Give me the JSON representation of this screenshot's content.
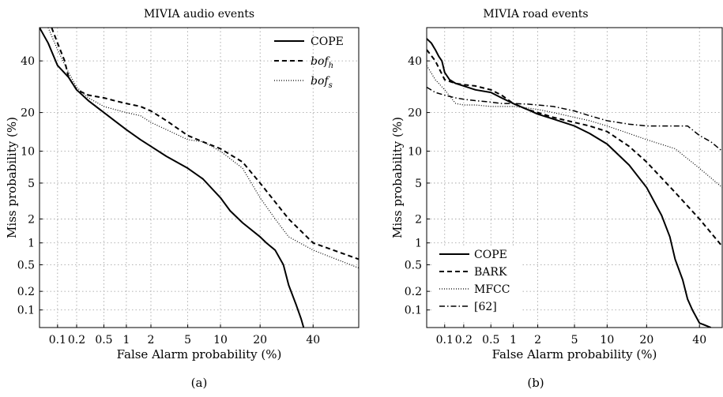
{
  "chart_data": [
    {
      "type": "line",
      "title": "MIVIA audio events",
      "xlabel": "False Alarm probability (%)",
      "ylabel": "Miss probability (%)",
      "xscale": "normal-deviate",
      "yscale": "normal-deviate",
      "xlim": [
        0.05,
        60
      ],
      "ylim": [
        0.05,
        55
      ],
      "xticks": [
        0.1,
        0.2,
        0.5,
        1,
        2,
        5,
        10,
        20,
        40
      ],
      "xtick_labels": [
        "0.1",
        "0.2",
        "0.5",
        "1",
        "2",
        "5",
        "10",
        "20",
        "40"
      ],
      "yticks": [
        0.1,
        0.2,
        0.5,
        1,
        2,
        5,
        10,
        20,
        40
      ],
      "ytick_labels": [
        "0.1",
        "0.2",
        "0.5",
        "1",
        "2",
        "5",
        "10",
        "20",
        "40"
      ],
      "grid": true,
      "legend_position": "top-right",
      "caption": "(a)",
      "series": [
        {
          "name": "COPE",
          "style": "solid",
          "width": 2,
          "x": [
            0.05,
            0.07,
            0.1,
            0.15,
            0.2,
            0.3,
            0.5,
            0.7,
            1,
            1.5,
            2,
            3,
            5,
            7,
            10,
            12,
            15,
            20,
            22,
            25,
            28,
            30,
            33,
            35,
            36
          ],
          "y": [
            55,
            48,
            38,
            33,
            28,
            24,
            20,
            17.5,
            15,
            12.5,
            11,
            9,
            7,
            5.5,
            3.5,
            2.5,
            1.8,
            1.2,
            1,
            0.8,
            0.5,
            0.25,
            0.12,
            0.07,
            0.05
          ]
        },
        {
          "name": "bof_h",
          "label_base": "bof",
          "label_sub": "h",
          "style": "dashed",
          "width": 2,
          "x": [
            0.08,
            0.1,
            0.13,
            0.15,
            0.2,
            0.3,
            0.5,
            0.7,
            1,
            1.5,
            2,
            3,
            5,
            7,
            10,
            15,
            20,
            30,
            40,
            60
          ],
          "y": [
            55,
            48,
            40,
            33,
            28,
            26,
            25,
            24,
            23,
            22,
            20.5,
            17.5,
            13.5,
            12,
            10.5,
            8,
            5,
            2,
            1,
            0.6
          ]
        },
        {
          "name": "bof_s",
          "label_base": "bof",
          "label_sub": "s",
          "style": "dotted",
          "width": 1.2,
          "x": [
            0.07,
            0.1,
            0.15,
            0.2,
            0.3,
            0.5,
            0.7,
            1,
            1.5,
            2,
            3,
            5,
            7,
            10,
            15,
            20,
            25,
            30,
            40,
            60
          ],
          "y": [
            55,
            45,
            35,
            29,
            25,
            22,
            21,
            20,
            19,
            17,
            15,
            12.5,
            12,
            10,
            7,
            3.5,
            2,
            1.2,
            0.8,
            0.45
          ]
        }
      ]
    },
    {
      "type": "line",
      "title": "MIVIA road events",
      "xlabel": "False Alarm probability (%)",
      "ylabel": "Miss probability (%)",
      "xscale": "normal-deviate",
      "yscale": "normal-deviate",
      "xlim": [
        0.05,
        50
      ],
      "ylim": [
        0.05,
        55
      ],
      "xticks": [
        0.1,
        0.2,
        0.5,
        1,
        2,
        5,
        10,
        20,
        40
      ],
      "xtick_labels": [
        "0.1",
        "0.2",
        "0.5",
        "1",
        "2",
        "5",
        "10",
        "20",
        "40"
      ],
      "yticks": [
        0.1,
        0.2,
        0.5,
        1,
        2,
        5,
        10,
        20,
        40
      ],
      "ytick_labels": [
        "0.1",
        "0.2",
        "0.5",
        "1",
        "2",
        "5",
        "10",
        "20",
        "40"
      ],
      "grid": true,
      "legend_position": "bottom-left",
      "caption": "(b)",
      "series": [
        {
          "name": "COPE",
          "style": "solid",
          "width": 2,
          "x": [
            0.05,
            0.06,
            0.07,
            0.08,
            0.09,
            0.1,
            0.12,
            0.15,
            0.2,
            0.3,
            0.5,
            0.7,
            1,
            1.5,
            2,
            3,
            5,
            7,
            10,
            15,
            20,
            25,
            28,
            30,
            33,
            35,
            37,
            40,
            45
          ],
          "y": [
            50,
            48,
            45,
            42,
            40,
            35,
            32,
            30.5,
            29.5,
            28,
            27,
            25,
            23,
            21,
            19.5,
            18,
            16,
            14,
            11.5,
            7.5,
            4.5,
            2.2,
            1.2,
            0.6,
            0.3,
            0.15,
            0.1,
            0.06,
            0.05
          ]
        },
        {
          "name": "BARK",
          "style": "dashed",
          "width": 2,
          "x": [
            0.05,
            0.07,
            0.1,
            0.15,
            0.2,
            0.3,
            0.5,
            0.7,
            1,
            1.5,
            2,
            3,
            5,
            7,
            10,
            15,
            20,
            30,
            40,
            50
          ],
          "y": [
            45,
            40,
            32,
            30.5,
            30,
            29.5,
            28,
            26,
            23,
            21,
            20,
            18.5,
            17,
            16,
            14.5,
            11,
            8,
            4,
            2,
            0.9
          ]
        },
        {
          "name": "MFCC",
          "style": "dotted",
          "width": 1.2,
          "x": [
            0.05,
            0.07,
            0.1,
            0.15,
            0.2,
            0.3,
            0.5,
            0.7,
            1,
            1.5,
            2,
            3,
            5,
            7,
            10,
            15,
            20,
            30,
            40,
            50
          ],
          "y": [
            38,
            32,
            28,
            23,
            22.5,
            22.5,
            22,
            22,
            22,
            21.5,
            21,
            20,
            18.5,
            17.5,
            16,
            14,
            12.5,
            10.5,
            7,
            4.5
          ]
        },
        {
          "name": "[62]",
          "style": "dashdot",
          "width": 1.5,
          "x": [
            0.05,
            0.07,
            0.1,
            0.15,
            0.2,
            0.3,
            0.5,
            0.7,
            1,
            1.5,
            2,
            3,
            5,
            7,
            10,
            15,
            20,
            30,
            35,
            40,
            45,
            50
          ],
          "y": [
            29,
            27,
            26,
            25,
            24.5,
            24,
            23.5,
            23,
            23,
            22.8,
            22.5,
            22,
            20.5,
            19,
            17.5,
            16.5,
            16,
            16,
            16,
            13.5,
            12,
            10
          ]
        }
      ]
    }
  ]
}
